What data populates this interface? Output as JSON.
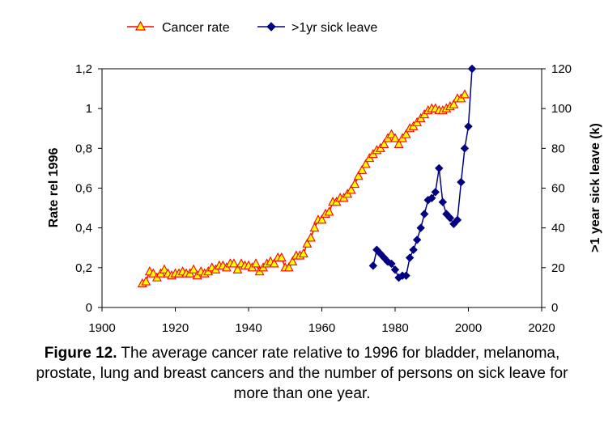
{
  "caption": {
    "label": "Figure 12.",
    "text": " The average cancer rate relative to 1996 for bladder, melanoma, prostate, lung and breast cancers and the number of persons on sick leave for more than one year."
  },
  "chart_data": {
    "type": "line",
    "title": "",
    "xlabel": "",
    "ylabel": "Rate rel 1996",
    "y2label": ">1 year sick leave (k)",
    "xlim": [
      1900,
      2020
    ],
    "ylim": [
      0,
      1.2
    ],
    "y2lim": [
      0,
      120
    ],
    "x_ticks": [
      "1900",
      "1920",
      "1940",
      "1960",
      "1980",
      "2000",
      "2020"
    ],
    "y_ticks": [
      "0",
      "0,2",
      "0,4",
      "0,6",
      "0,8",
      "1",
      "1,2"
    ],
    "y2_ticks": [
      "0",
      "20",
      "40",
      "60",
      "80",
      "100",
      "120"
    ],
    "grid": false,
    "legend": "top",
    "series": [
      {
        "name": "Cancer rate",
        "axis": "left",
        "color": "#ff0000",
        "marker_fill": "#ffff00",
        "marker": "triangle",
        "x": [
          1911,
          1912,
          1913,
          1914,
          1915,
          1916,
          1917,
          1918,
          1919,
          1920,
          1921,
          1922,
          1923,
          1924,
          1925,
          1926,
          1927,
          1928,
          1929,
          1930,
          1931,
          1932,
          1933,
          1934,
          1935,
          1936,
          1937,
          1938,
          1939,
          1940,
          1941,
          1942,
          1943,
          1944,
          1945,
          1946,
          1947,
          1948,
          1949,
          1950,
          1951,
          1952,
          1953,
          1954,
          1955,
          1956,
          1957,
          1958,
          1959,
          1960,
          1961,
          1962,
          1963,
          1964,
          1965,
          1966,
          1967,
          1968,
          1969,
          1970,
          1971,
          1972,
          1973,
          1974,
          1975,
          1976,
          1977,
          1978,
          1979,
          1980,
          1981,
          1982,
          1983,
          1984,
          1985,
          1986,
          1987,
          1988,
          1989,
          1990,
          1991,
          1992,
          1993,
          1994,
          1995,
          1996,
          1997,
          1998,
          1999
        ],
        "y": [
          0.12,
          0.13,
          0.18,
          0.17,
          0.15,
          0.17,
          0.19,
          0.17,
          0.16,
          0.17,
          0.17,
          0.18,
          0.17,
          0.17,
          0.19,
          0.16,
          0.18,
          0.17,
          0.18,
          0.2,
          0.19,
          0.21,
          0.21,
          0.2,
          0.22,
          0.22,
          0.19,
          0.22,
          0.21,
          0.21,
          0.2,
          0.22,
          0.18,
          0.2,
          0.22,
          0.23,
          0.22,
          0.25,
          0.25,
          0.2,
          0.2,
          0.23,
          0.26,
          0.26,
          0.27,
          0.32,
          0.35,
          0.4,
          0.44,
          0.44,
          0.47,
          0.48,
          0.53,
          0.53,
          0.55,
          0.55,
          0.57,
          0.59,
          0.62,
          0.66,
          0.69,
          0.72,
          0.75,
          0.77,
          0.79,
          0.8,
          0.82,
          0.85,
          0.87,
          0.85,
          0.82,
          0.85,
          0.87,
          0.9,
          0.91,
          0.93,
          0.95,
          0.97,
          0.99,
          1.0,
          1.0,
          0.99,
          0.99,
          1.0,
          1.01,
          1.02,
          1.05,
          1.05,
          1.07
        ]
      },
      {
        "name": ">1yr sick leave",
        "axis": "right",
        "color": "#000080",
        "marker": "diamond",
        "x": [
          1974,
          1975,
          1976,
          1977,
          1978,
          1979,
          1980,
          1981,
          1982,
          1983,
          1984,
          1985,
          1986,
          1987,
          1988,
          1989,
          1990,
          1991,
          1992,
          1993,
          1994,
          1995,
          1996,
          1997,
          1998,
          1999,
          2000,
          2001
        ],
        "y": [
          21,
          29,
          27,
          25,
          23,
          22,
          19,
          15,
          16,
          16,
          25,
          29,
          34,
          40,
          47,
          54,
          55,
          58,
          70,
          53,
          47,
          45,
          42,
          44,
          63,
          80,
          91,
          120
        ]
      }
    ]
  }
}
